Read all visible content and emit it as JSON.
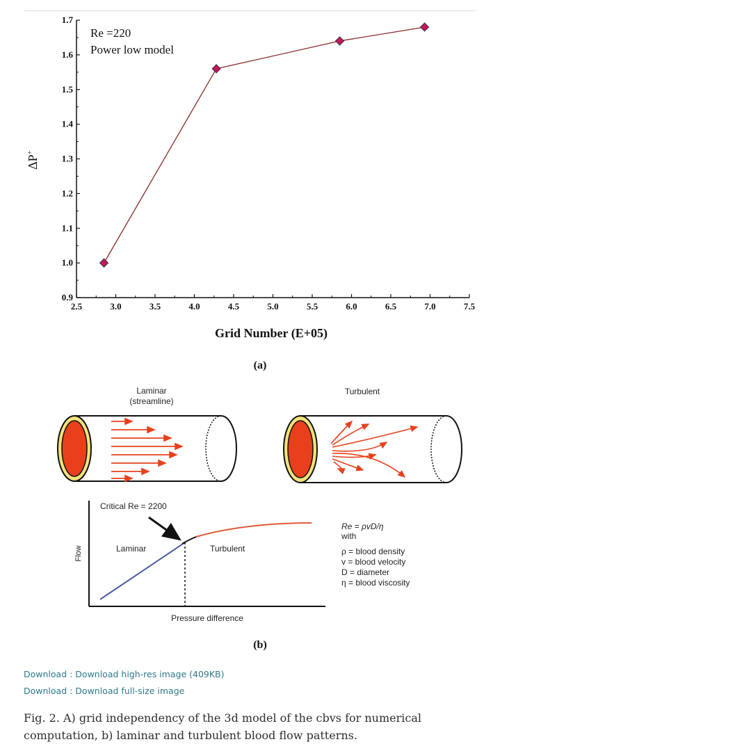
{
  "chart_data": {
    "type": "line",
    "x": [
      2.85,
      4.28,
      5.85,
      6.93
    ],
    "y": [
      1.0,
      1.56,
      1.64,
      1.68
    ],
    "xlim": [
      2.5,
      7.5
    ],
    "ylim": [
      0.9,
      1.7
    ],
    "xticks": [
      "2.5",
      "3.0",
      "3.5",
      "4.0",
      "4.5",
      "5.0",
      "5.5",
      "6.0",
      "6.5",
      "7.0",
      "7.5"
    ],
    "yticks": [
      "0.9",
      "1.0",
      "1.1",
      "1.2",
      "1.3",
      "1.4",
      "1.5",
      "1.6",
      "1.7"
    ],
    "xlabel": "Grid Number (E+05)",
    "ylabel_base": "ΔP",
    "ylabel_sup": "+",
    "annotation_line1": "Re =220",
    "annotation_line2": "Power low model",
    "marker_color": "#c2185b",
    "line_color": "#8b2a2a"
  },
  "panel_a_label": "(a)",
  "panel_b": {
    "label": "(b)",
    "laminar_title_1": "Laminar",
    "laminar_title_2": "(streamline)",
    "turbulent_title": "Turbulent",
    "critical_label": "Critical Re = 2200",
    "graph_ylabel": "Flow",
    "graph_xlabel": "Pressure difference",
    "region_laminar": "Laminar",
    "region_turbulent": "Turbulent",
    "eq_line1": "Re = ρvD/η",
    "eq_line2": "with",
    "def_rho": "ρ =  blood density",
    "def_v": "v = blood velocity",
    "def_d": "D = diameter",
    "def_eta": "η = blood viscosity",
    "colors": {
      "blood": "#e8401c",
      "wall": "#f2e27a",
      "laminar_curve": "#4a5aa8",
      "turbulent_curve": "#e05a3a"
    }
  },
  "links": {
    "download_highres": "Download : Download high-res image (409KB)",
    "download_full": "Download : Download full-size image"
  },
  "caption": "Fig. 2. A) grid independency of the 3d model of the cbvs for numerical computation, b) laminar and turbulent blood flow patterns."
}
